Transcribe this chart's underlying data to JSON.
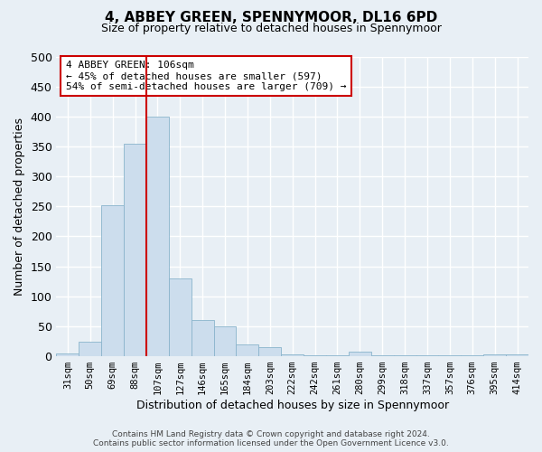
{
  "title": "4, ABBEY GREEN, SPENNYMOOR, DL16 6PD",
  "subtitle": "Size of property relative to detached houses in Spennymoor",
  "xlabel": "Distribution of detached houses by size in Spennymoor",
  "ylabel": "Number of detached properties",
  "bar_labels": [
    "31sqm",
    "50sqm",
    "69sqm",
    "88sqm",
    "107sqm",
    "127sqm",
    "146sqm",
    "165sqm",
    "184sqm",
    "203sqm",
    "222sqm",
    "242sqm",
    "261sqm",
    "280sqm",
    "299sqm",
    "318sqm",
    "337sqm",
    "357sqm",
    "376sqm",
    "395sqm",
    "414sqm"
  ],
  "bar_values": [
    5,
    25,
    252,
    355,
    400,
    130,
    60,
    50,
    20,
    15,
    3,
    1,
    1,
    7,
    1,
    1,
    1,
    1,
    1,
    3,
    3
  ],
  "bar_color": "#ccdded",
  "bar_edgecolor": "#8ab4cc",
  "vline_color": "#cc0000",
  "annotation_title": "4 ABBEY GREEN: 106sqm",
  "annotation_line1": "← 45% of detached houses are smaller (597)",
  "annotation_line2": "54% of semi-detached houses are larger (709) →",
  "annotation_box_edgecolor": "#cc0000",
  "ylim": [
    0,
    500
  ],
  "yticks": [
    0,
    50,
    100,
    150,
    200,
    250,
    300,
    350,
    400,
    450,
    500
  ],
  "footer_line1": "Contains HM Land Registry data © Crown copyright and database right 2024.",
  "footer_line2": "Contains public sector information licensed under the Open Government Licence v3.0.",
  "bg_color": "#e8eff5",
  "grid_color": "#ffffff",
  "title_fontsize": 11,
  "subtitle_fontsize": 9
}
